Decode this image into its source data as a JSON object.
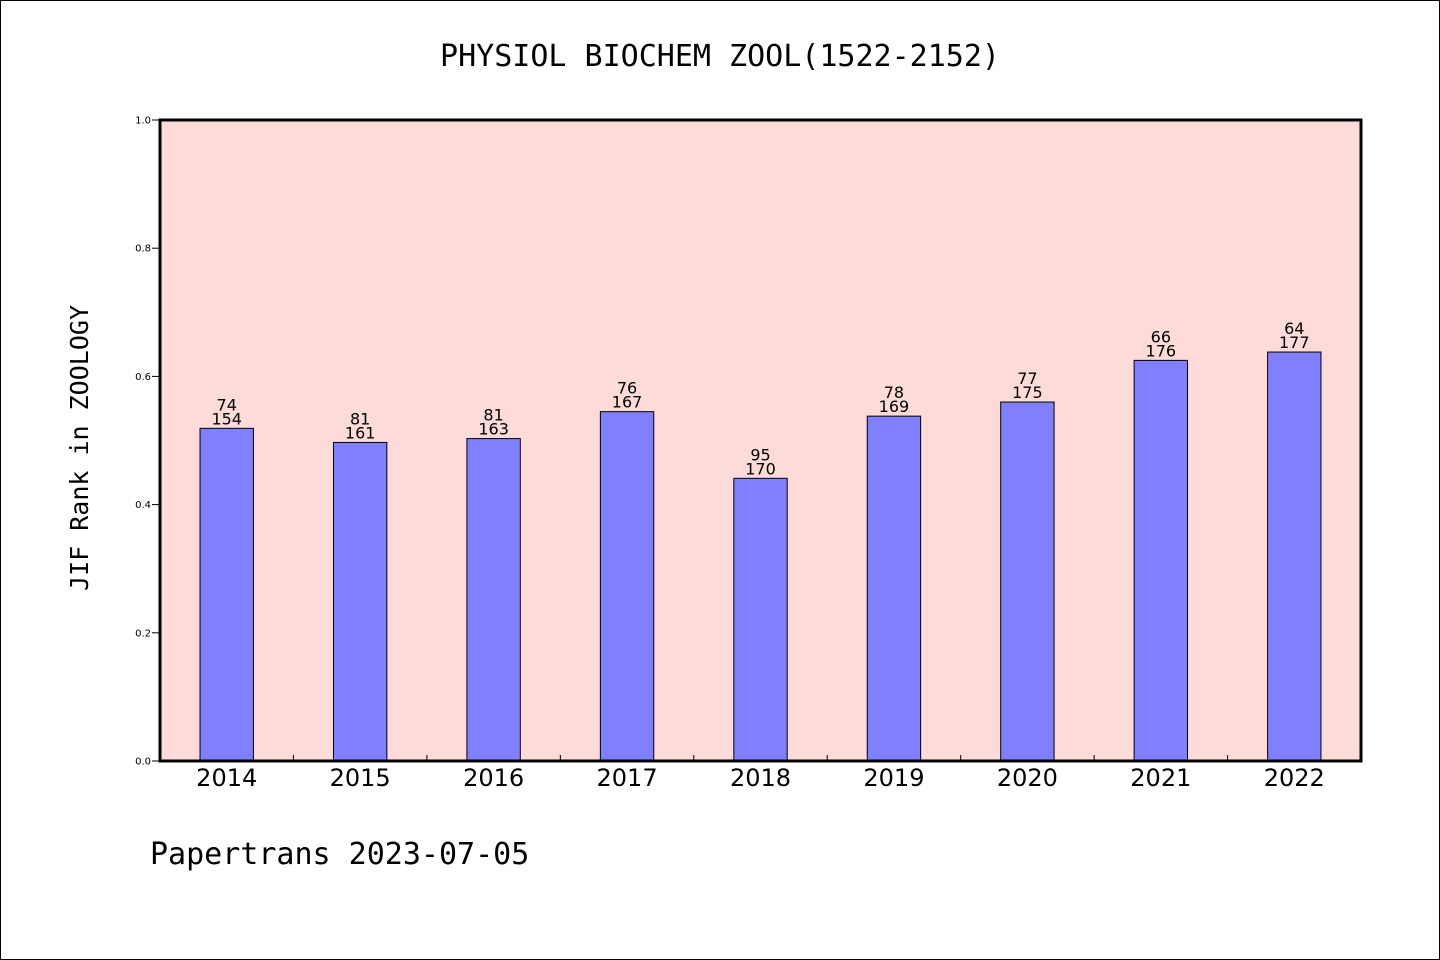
{
  "chart_data": {
    "type": "bar",
    "title": "PHYSIOL BIOCHEM ZOOL(1522-2152)",
    "ylabel": "JIF Rank in ZOOLOGY",
    "xlabel": "",
    "ylim": [
      0.0,
      1.0
    ],
    "yticks": [
      "0.0",
      "0.2",
      "0.4",
      "0.6",
      "0.8",
      "1.0"
    ],
    "categories": [
      "2014",
      "2015",
      "2016",
      "2017",
      "2018",
      "2019",
      "2020",
      "2021",
      "2022"
    ],
    "values": [
      0.519,
      0.497,
      0.503,
      0.545,
      0.441,
      0.538,
      0.56,
      0.625,
      0.638
    ],
    "rank": [
      "74",
      "81",
      "81",
      "76",
      "95",
      "78",
      "77",
      "66",
      "64"
    ],
    "total": [
      "154",
      "161",
      "163",
      "167",
      "170",
      "169",
      "175",
      "176",
      "177"
    ],
    "grid": false,
    "colors": {
      "plot_bg": "#fddbd8",
      "bar": "#8080ff",
      "bar_edge": "#000000"
    }
  },
  "footer": "Papertrans 2023-07-05"
}
